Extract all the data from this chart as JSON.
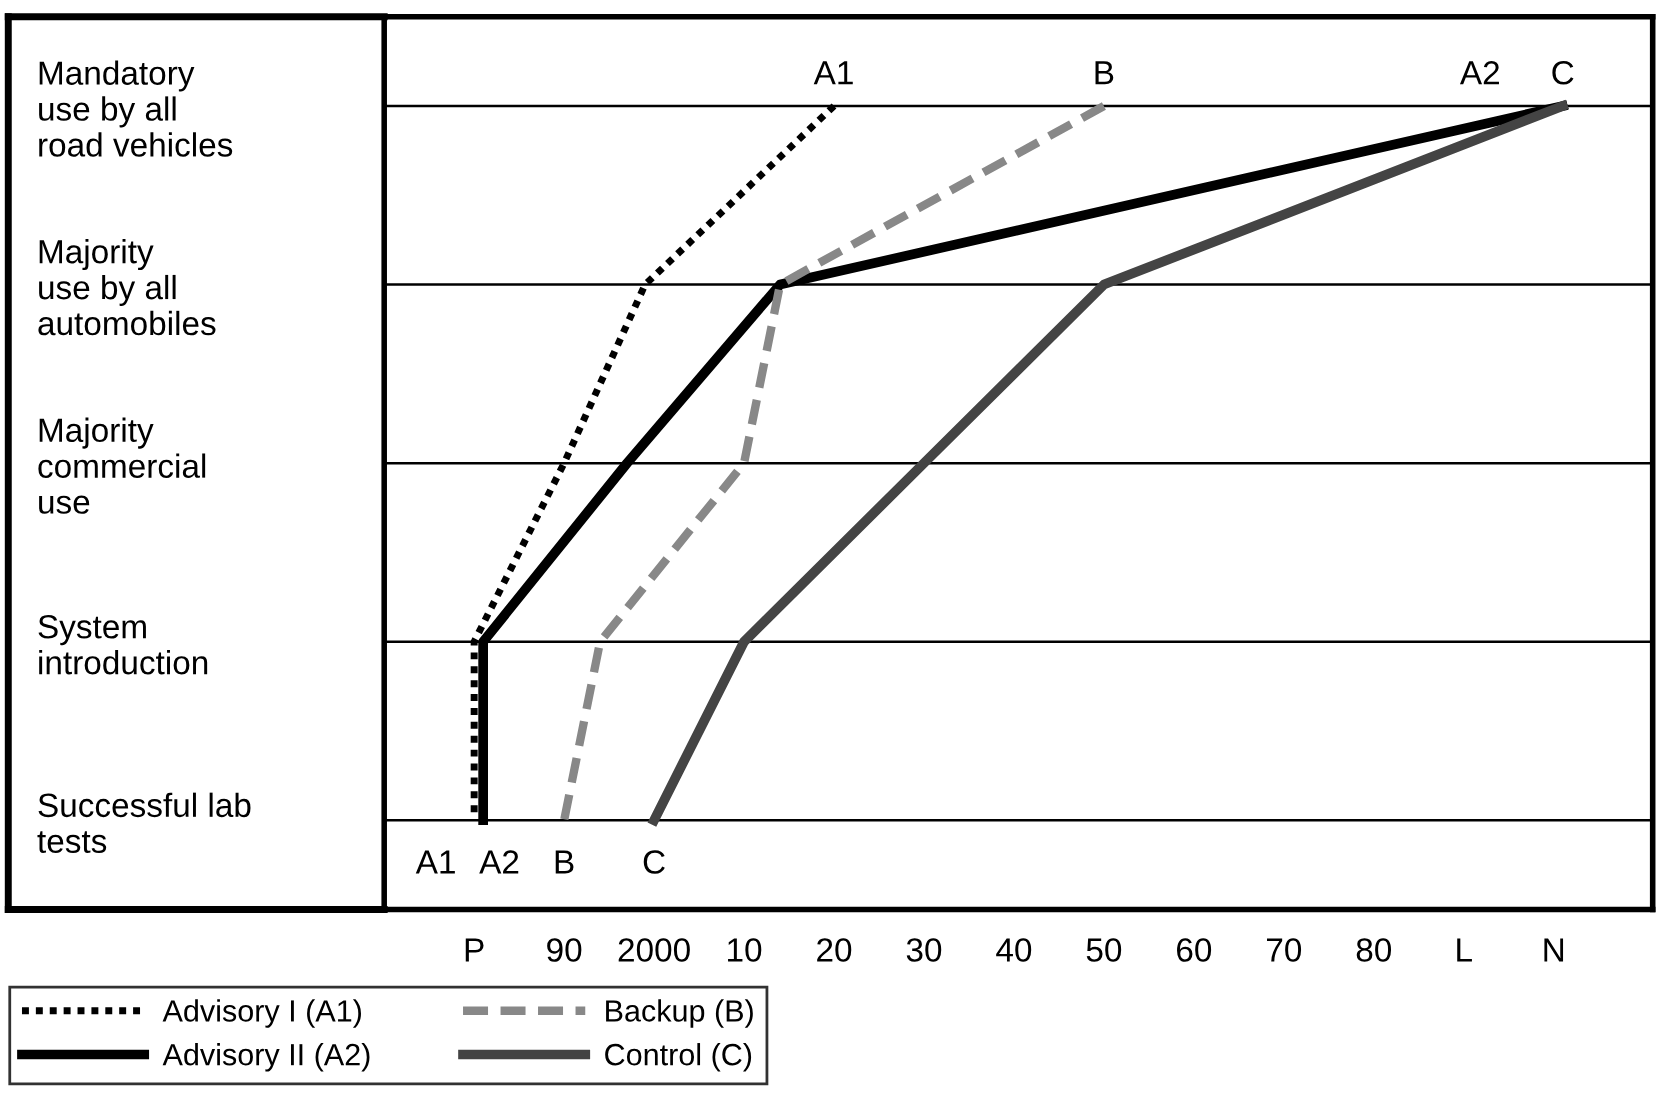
{
  "chart_data": {
    "type": "line",
    "orientation": "horizontal",
    "categories": [
      "Mandatory\nuse by all\nroad vehicles",
      "Majority\nuse by all\nautomobiles",
      "Majority\ncommercial\nuse",
      "System\nintroduction",
      "Successful lab\ntests"
    ],
    "xlim": [
      1970,
      2111
    ],
    "xticks": [
      {
        "value": 1980,
        "label": "P"
      },
      {
        "value": 1990,
        "label": "90"
      },
      2000,
      {
        "value": 2010,
        "label": "10"
      },
      {
        "value": 2020,
        "label": "20"
      },
      {
        "value": 2030,
        "label": "30"
      },
      {
        "value": 2040,
        "label": "40"
      },
      {
        "value": 2050,
        "label": "50"
      },
      {
        "value": 2060,
        "label": "60"
      },
      {
        "value": 2070,
        "label": "70"
      },
      {
        "value": 2080,
        "label": "80"
      },
      {
        "value": 2090,
        "label": "L"
      },
      {
        "value": 2100,
        "label": "N"
      }
    ],
    "grid": "y",
    "legend": "bottom left",
    "series": [
      {
        "name": "Advisory I (A1)",
        "color": "#000000",
        "line_style": "dotted",
        "values": [
          2020,
          1999,
          1990,
          1980,
          1980
        ]
      },
      {
        "name": "Advisory II (A2)",
        "color": "#000000",
        "line_style": "solid",
        "values": [
          2101,
          2014,
          1997,
          1981,
          1981
        ]
      },
      {
        "name": "Backup (B)",
        "color": "#888888",
        "line_style": "dashed",
        "values": [
          2050,
          2014,
          2010,
          1994,
          1990
        ]
      },
      {
        "name": "Control (C)",
        "color": "#444444",
        "line_style": "solid",
        "values": [
          2101,
          2050,
          2030,
          2010,
          2000
        ]
      }
    ],
    "annotations": [
      "A1",
      "A2",
      "B",
      "C",
      "A1",
      "A2",
      "B",
      "C"
    ]
  }
}
